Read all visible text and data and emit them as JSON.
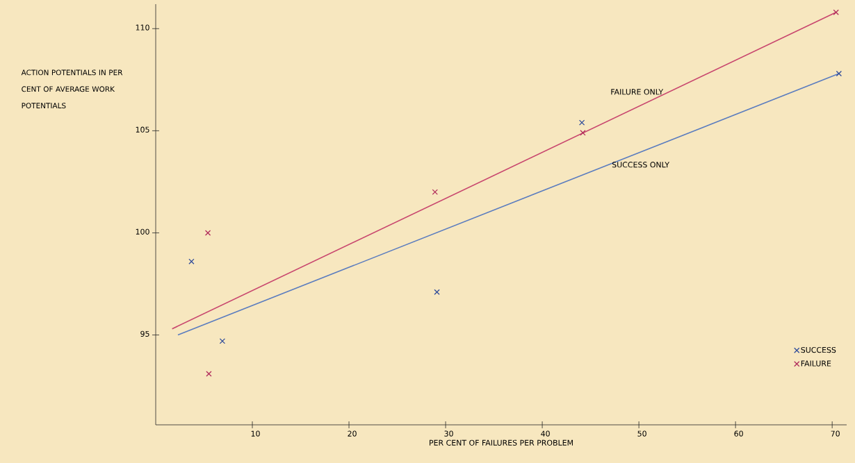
{
  "chart_data": {
    "type": "scatter",
    "xlabel": "PER CENT OF FAILURES PER PROBLEM",
    "ylabel": "ACTION POTENTIALS IN PER CENT OF AVERAGE WORK POTENTIALS",
    "xlim": [
      0,
      71.5
    ],
    "ylim": [
      90.6,
      111.2
    ],
    "xticks": [
      10,
      20,
      30,
      40,
      50,
      60,
      70
    ],
    "yticks": [
      95,
      100,
      105,
      110
    ],
    "legend": "bottom right",
    "marker": "cross",
    "series": [
      {
        "type": "line",
        "name": "FAILURE ONLY",
        "marker": "none",
        "color": "#c8466e",
        "x": [
          1.7,
          70.4
        ],
        "values": [
          95.3,
          110.8
        ]
      },
      {
        "type": "line",
        "name": "SUCCESS ONLY",
        "marker": "none",
        "color": "#5a7cbf",
        "x": [
          2.3,
          70.7
        ],
        "values": [
          95.0,
          107.8
        ]
      },
      {
        "name": "SUCCESS",
        "color": "#2d4a9a",
        "x": [
          3.7,
          6.9,
          29.1,
          44.1,
          70.7
        ],
        "values": [
          98.6,
          94.7,
          97.1,
          105.4,
          107.8
        ]
      },
      {
        "name": "FAILURE",
        "color": "#b02a5a",
        "x": [
          5.4,
          5.5,
          28.9,
          44.2,
          70.4
        ],
        "values": [
          100.0,
          93.1,
          102.0,
          104.9,
          110.8
        ]
      }
    ]
  }
}
